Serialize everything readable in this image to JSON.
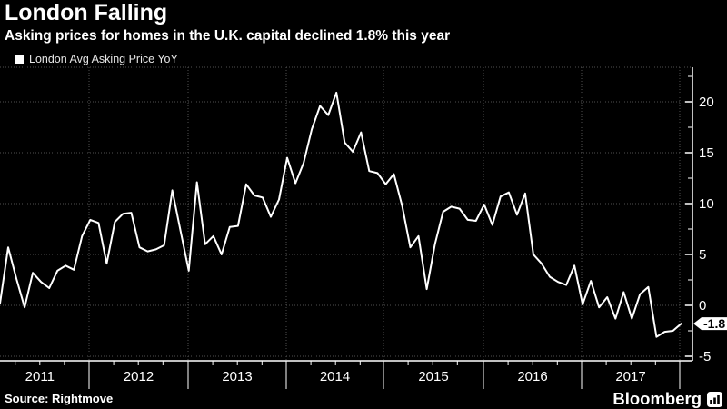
{
  "header": {
    "title": "London Falling",
    "subtitle": "Asking prices for homes in the U.K. capital declined 1.8% this year"
  },
  "legend": {
    "marker": "white-square",
    "label": "London Avg Asking Price YoY"
  },
  "footer": {
    "source": "Source: Rightmove",
    "brand": "Bloomberg",
    "brand_icon": "bar-chart-icon"
  },
  "colors": {
    "background": "#000000",
    "line": "#ffffff",
    "grid": "#4f4f4f",
    "axis": "#ffffff",
    "text": "#ffffff",
    "legend_text": "#e6e6e6",
    "flag_bg": "#ffffff",
    "flag_text": "#000000"
  },
  "chart_data": {
    "type": "line",
    "title": "London Falling",
    "subtitle": "Asking prices for homes in the U.K. capital declined 1.8% this year",
    "series_name": "London Avg Asking Price YoY",
    "unit": "percent, year-over-year",
    "frequency": "monthly",
    "x_start": "2011-01",
    "x_end": "2017-12",
    "x_tick_labels": [
      "2011",
      "2012",
      "2013",
      "2014",
      "2015",
      "2016",
      "2017"
    ],
    "y_ticks": [
      -5,
      0,
      5,
      10,
      15,
      20
    ],
    "y_minor_step": 2.5,
    "ylim": [
      -5.45,
      23.4
    ],
    "grid": "dotted",
    "legend_position": "top-left",
    "y_axis_position": "right",
    "last_value_label": "-1.8",
    "source": "Rightmove",
    "values": [
      0.2,
      5.7,
      2.6,
      -0.2,
      3.2,
      2.3,
      1.7,
      3.4,
      3.9,
      3.5,
      6.8,
      8.4,
      8.1,
      4.1,
      8.2,
      9.0,
      9.1,
      5.7,
      5.3,
      5.5,
      5.9,
      11.3,
      7.3,
      3.4,
      12.1,
      6.0,
      6.8,
      5.0,
      7.7,
      7.8,
      11.9,
      10.8,
      10.6,
      8.7,
      10.4,
      14.5,
      12.0,
      14.0,
      17.3,
      19.6,
      18.7,
      20.9,
      16.0,
      15.1,
      17.0,
      13.2,
      13.0,
      11.9,
      12.9,
      9.8,
      5.7,
      6.8,
      1.6,
      6.0,
      9.2,
      9.7,
      9.5,
      8.4,
      8.3,
      9.9,
      7.9,
      10.7,
      11.1,
      8.9,
      11.0,
      5.0,
      4.1,
      2.8,
      2.3,
      2.0,
      3.9,
      0.1,
      2.4,
      -0.2,
      0.8,
      -1.3,
      1.3,
      -1.3,
      1.1,
      1.8,
      -3.1,
      -2.6,
      -2.5,
      -1.8
    ]
  }
}
